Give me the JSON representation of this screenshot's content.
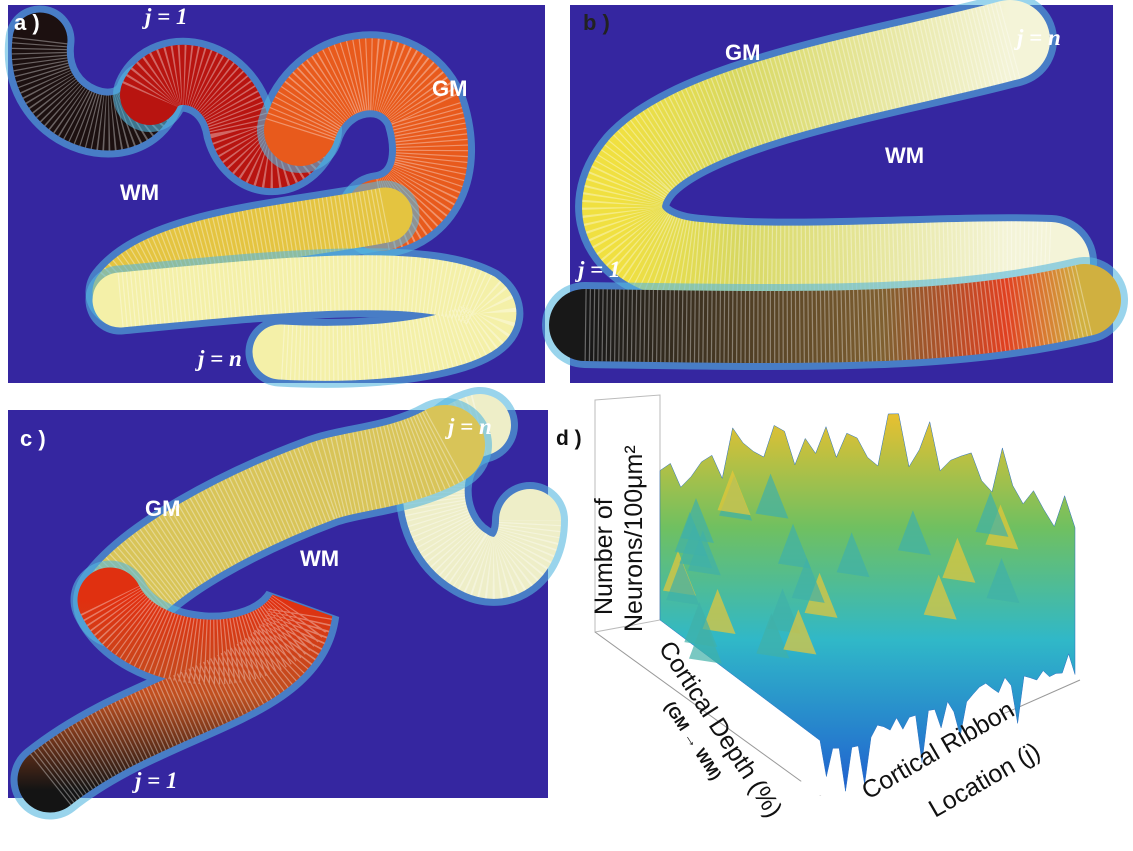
{
  "panels": [
    {
      "label": "a )",
      "j_start": "j = 1",
      "j_end": "j = n",
      "gm": "GM",
      "wm": "WM"
    },
    {
      "label": "b )",
      "j_start": "j = 1",
      "j_end": "j = n",
      "gm": "GM",
      "wm": "WM"
    },
    {
      "label": "c )",
      "j_start": "j = 1",
      "j_end": "j = n",
      "gm": "GM",
      "wm": "WM"
    }
  ],
  "surface": {
    "label": "d )",
    "z_label": [
      "Number of",
      "Neurons/100μm²"
    ],
    "depth_label": [
      "Cortical Depth (%)",
      "(GM → WM)"
    ],
    "ribbon_label": [
      "Cortical Ribbon",
      "Location (j)"
    ]
  }
}
